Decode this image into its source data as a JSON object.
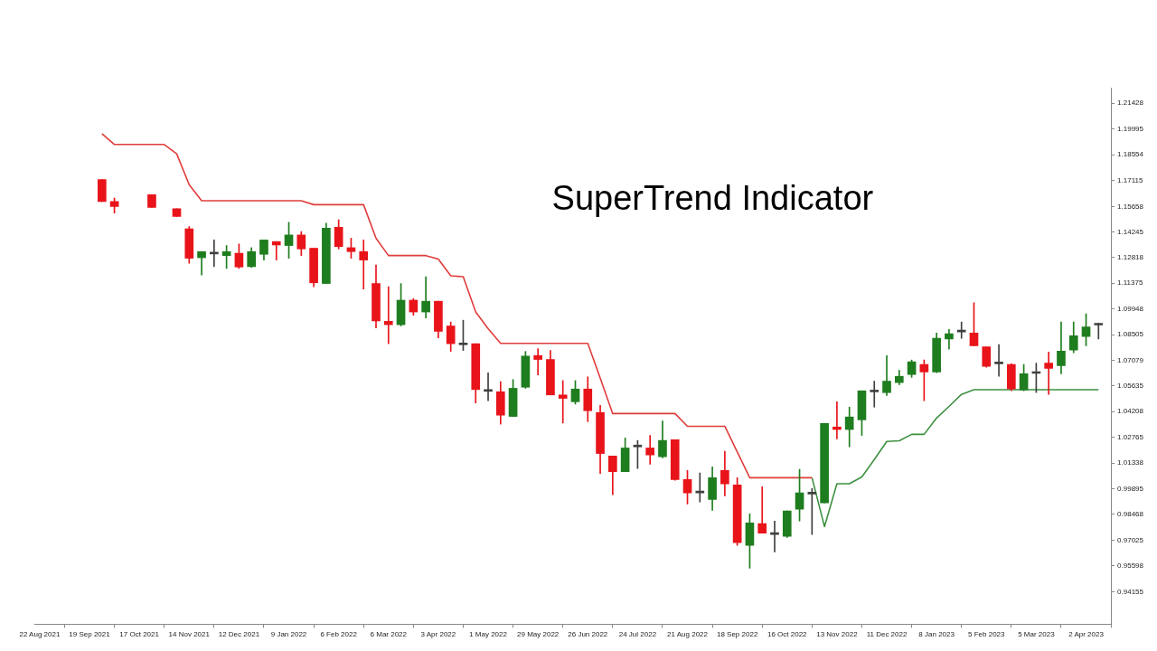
{
  "chart_data": {
    "type": "candlestick",
    "title": "SuperTrend Indicator",
    "x": [
      "2021-09-26",
      "2021-10-03",
      "2021-10-24",
      "2021-11-07",
      "2021-11-14",
      "2021-11-21",
      "2021-11-28",
      "2021-12-05",
      "2021-12-12",
      "2021-12-19",
      "2021-12-26",
      "2022-01-02",
      "2022-01-09",
      "2022-01-16",
      "2022-01-23",
      "2022-01-30",
      "2022-02-06",
      "2022-02-13",
      "2022-02-20",
      "2022-02-27",
      "2022-03-06",
      "2022-03-13",
      "2022-03-20",
      "2022-03-27",
      "2022-04-03",
      "2022-04-10",
      "2022-04-17",
      "2022-04-24",
      "2022-05-01",
      "2022-05-08",
      "2022-05-15",
      "2022-05-22",
      "2022-05-29",
      "2022-06-05",
      "2022-06-12",
      "2022-06-19",
      "2022-06-26",
      "2022-07-03",
      "2022-07-10",
      "2022-07-17",
      "2022-07-24",
      "2022-07-31",
      "2022-08-07",
      "2022-08-14",
      "2022-08-21",
      "2022-08-28",
      "2022-09-04",
      "2022-09-11",
      "2022-09-18",
      "2022-09-25",
      "2022-10-02",
      "2022-10-09",
      "2022-10-16",
      "2022-10-23",
      "2022-10-30",
      "2022-11-06",
      "2022-11-13",
      "2022-11-20",
      "2022-11-27",
      "2022-12-04",
      "2022-12-11",
      "2022-12-18",
      "2022-12-25",
      "2023-01-01",
      "2023-01-08",
      "2023-01-15",
      "2023-01-22",
      "2023-01-29",
      "2023-02-05",
      "2023-02-12",
      "2023-02-19",
      "2023-02-26",
      "2023-03-05",
      "2023-03-12",
      "2023-03-19",
      "2023-03-26",
      "2023-04-02",
      "2023-04-09"
    ],
    "ohlc": [
      [
        1.1716,
        1.1716,
        1.1594,
        1.1594
      ],
      [
        1.1594,
        1.1613,
        1.1529,
        1.1566
      ],
      [
        1.1632,
        1.1632,
        1.1561,
        1.1561
      ],
      [
        1.1553,
        1.1553,
        1.151,
        1.151
      ],
      [
        1.1441,
        1.1454,
        1.1249,
        1.1277
      ],
      [
        1.128,
        1.1314,
        1.1183,
        1.1314
      ],
      [
        1.1301,
        1.1379,
        1.123,
        1.1303
      ],
      [
        1.1292,
        1.1348,
        1.122,
        1.1314
      ],
      [
        1.1305,
        1.1357,
        1.122,
        1.1228
      ],
      [
        1.123,
        1.1336,
        1.1226,
        1.1314
      ],
      [
        1.1299,
        1.1379,
        1.1267,
        1.1379
      ],
      [
        1.137,
        1.137,
        1.1267,
        1.1351
      ],
      [
        1.1348,
        1.1478,
        1.1277,
        1.1407
      ],
      [
        1.1407,
        1.1426,
        1.1292,
        1.1329
      ],
      [
        1.1333,
        1.1333,
        1.1118,
        1.114
      ],
      [
        1.1136,
        1.1473,
        1.1136,
        1.1445
      ],
      [
        1.145,
        1.1492,
        1.1329,
        1.1342
      ],
      [
        1.1336,
        1.1389,
        1.1277,
        1.1314
      ],
      [
        1.1314,
        1.1379,
        1.1105,
        1.1267
      ],
      [
        1.1136,
        1.1239,
        1.0888,
        1.0927
      ],
      [
        1.0925,
        1.1118,
        1.08,
        1.0906
      ],
      [
        1.0906,
        1.1136,
        1.0899,
        1.1043
      ],
      [
        1.1043,
        1.1052,
        1.0959,
        1.0977
      ],
      [
        1.0977,
        1.1174,
        1.0944,
        1.1037
      ],
      [
        1.1037,
        1.1037,
        1.0832,
        1.0869
      ],
      [
        1.0899,
        1.0921,
        1.0757,
        1.08
      ],
      [
        1.0794,
        1.0931,
        1.0762,
        1.0796
      ],
      [
        1.08,
        1.08,
        1.0469,
        1.0544
      ],
      [
        1.0534,
        1.0637,
        1.0482,
        1.0536
      ],
      [
        1.0532,
        1.0588,
        1.0351,
        1.0401
      ],
      [
        1.0394,
        1.06,
        1.0394,
        1.0551
      ],
      [
        1.0557,
        1.0757,
        1.0551,
        1.0731
      ],
      [
        1.0734,
        1.0772,
        1.0626,
        1.0712
      ],
      [
        1.0712,
        1.0762,
        1.0514,
        1.0514
      ],
      [
        1.0514,
        1.0594,
        1.0357,
        1.0495
      ],
      [
        1.0476,
        1.0594,
        1.0463,
        1.0547
      ],
      [
        1.0547,
        1.0615,
        1.0365,
        1.0426
      ],
      [
        1.0416,
        1.0456,
        1.0076,
        1.0187
      ],
      [
        1.0173,
        1.0173,
        0.9957,
        1.0086
      ],
      [
        1.0086,
        1.0274,
        1.0086,
        1.0218
      ],
      [
        1.0224,
        1.026,
        1.0103,
        1.0226
      ],
      [
        1.0218,
        1.0288,
        1.0127,
        1.0179
      ],
      [
        1.0169,
        1.0369,
        1.0163,
        1.026
      ],
      [
        1.0264,
        1.0264,
        1.0038,
        1.0042
      ],
      [
        1.0042,
        1.0093,
        0.9905,
        0.9967
      ],
      [
        0.9967,
        1.0078,
        0.9917,
        0.9969
      ],
      [
        0.9931,
        1.0113,
        0.987,
        1.0052
      ],
      [
        1.0093,
        1.02,
        0.9951,
        1.0018
      ],
      [
        1.0012,
        1.0052,
        0.9674,
        0.9689
      ],
      [
        0.9674,
        0.985,
        0.9547,
        0.98
      ],
      [
        0.9796,
        1.0002,
        0.9743,
        0.9743
      ],
      [
        0.9735,
        0.981,
        0.9638,
        0.9737
      ],
      [
        0.9725,
        0.9866,
        0.9719,
        0.9866
      ],
      [
        0.9876,
        1.0099,
        0.981,
        0.9967
      ],
      [
        0.9961,
        0.9992,
        0.9735,
        0.9963
      ],
      [
        0.9911,
        1.0355,
        0.9911,
        1.0355
      ],
      [
        1.0335,
        1.0476,
        1.0268,
        1.0321
      ],
      [
        1.0321,
        1.0446,
        1.0224,
        1.0391
      ],
      [
        1.0375,
        1.0537,
        1.0288,
        1.0537
      ],
      [
        1.0531,
        1.0591,
        1.0446,
        1.0533
      ],
      [
        1.0527,
        1.0733,
        1.0511,
        1.0591
      ],
      [
        1.0583,
        1.0652,
        1.0571,
        1.0618
      ],
      [
        1.0628,
        1.0709,
        1.0612,
        1.0699
      ],
      [
        1.0684,
        1.0709,
        1.0482,
        1.0642
      ],
      [
        1.0642,
        1.086,
        1.0638,
        1.083
      ],
      [
        1.0826,
        1.088,
        1.0769,
        1.0856
      ],
      [
        1.0866,
        1.0921,
        1.083,
        1.0868
      ],
      [
        1.086,
        1.1028,
        1.0789,
        1.0789
      ],
      [
        1.0783,
        1.0783,
        1.0668,
        1.0674
      ],
      [
        1.0688,
        1.0795,
        1.0618,
        1.069
      ],
      [
        1.0684,
        1.0688,
        1.0537,
        1.0547
      ],
      [
        1.0543,
        1.0684,
        1.0537,
        1.0632
      ],
      [
        1.0634,
        1.0692,
        1.0527,
        1.0636
      ],
      [
        1.0692,
        1.0753,
        1.0517,
        1.0662
      ],
      [
        1.0678,
        1.0921,
        1.0632,
        1.0759
      ],
      [
        1.0765,
        1.0921,
        1.0749,
        1.0844
      ],
      [
        1.084,
        1.0967,
        1.0789,
        1.0894
      ],
      [
        1.0904,
        1.0915,
        1.0826,
        1.0906
      ]
    ],
    "colors": [
      "#e8141a",
      "#e8141a",
      "#e8141a",
      "#e8141a",
      "#e8141a",
      "#1e7d1e",
      "#404040",
      "#1e7d1e",
      "#e8141a",
      "#1e7d1e",
      "#1e7d1e",
      "#e8141a",
      "#1e7d1e",
      "#e8141a",
      "#e8141a",
      "#1e7d1e",
      "#e8141a",
      "#e8141a",
      "#e8141a",
      "#e8141a",
      "#e8141a",
      "#1e7d1e",
      "#e8141a",
      "#1e7d1e",
      "#e8141a",
      "#e8141a",
      "#404040",
      "#e8141a",
      "#404040",
      "#e8141a",
      "#1e7d1e",
      "#1e7d1e",
      "#e8141a",
      "#e8141a",
      "#e8141a",
      "#1e7d1e",
      "#e8141a",
      "#e8141a",
      "#e8141a",
      "#1e7d1e",
      "#404040",
      "#e8141a",
      "#1e7d1e",
      "#e8141a",
      "#e8141a",
      "#404040",
      "#1e7d1e",
      "#e8141a",
      "#e8141a",
      "#1e7d1e",
      "#e8141a",
      "#404040",
      "#1e7d1e",
      "#1e7d1e",
      "#404040",
      "#1e7d1e",
      "#e8141a",
      "#1e7d1e",
      "#1e7d1e",
      "#404040",
      "#1e7d1e",
      "#1e7d1e",
      "#1e7d1e",
      "#e8141a",
      "#1e7d1e",
      "#1e7d1e",
      "#404040",
      "#e8141a",
      "#e8141a",
      "#404040",
      "#e8141a",
      "#1e7d1e",
      "#404040",
      "#e8141a",
      "#1e7d1e",
      "#1e7d1e",
      "#1e7d1e",
      "#404040"
    ],
    "series": [
      {
        "type": "line",
        "color": "#e03c3c",
        "x": [
          "2021-09-26",
          "2021-10-03",
          "2021-10-31",
          "2021-11-07",
          "2021-11-14",
          "2021-11-21",
          "2022-01-16",
          "2022-01-23",
          "2022-02-20",
          "2022-02-27",
          "2022-03-06",
          "2022-03-27",
          "2022-04-03",
          "2022-04-10",
          "2022-04-17",
          "2022-04-24",
          "2022-05-01",
          "2022-05-08",
          "2022-06-26",
          "2022-07-03",
          "2022-07-10",
          "2022-08-14",
          "2022-08-21",
          "2022-09-11",
          "2022-09-18",
          "2022-09-25",
          "2022-10-30"
        ],
        "values": [
          1.1972,
          1.1912,
          1.1912,
          1.186,
          1.1688,
          1.1598,
          1.1598,
          1.1576,
          1.1576,
          1.1389,
          1.1292,
          1.1292,
          1.1273,
          1.1179,
          1.1174,
          1.0977,
          1.0884,
          1.0802,
          1.0802,
          1.0608,
          1.041,
          1.041,
          1.0339,
          1.0339,
          1.0196,
          1.0052,
          1.0052
        ]
      },
      {
        "type": "line",
        "color": "#3d9140",
        "x": [
          "2022-10-30",
          "2022-11-06",
          "2022-11-13",
          "2022-11-20",
          "2022-11-27",
          "2022-12-04",
          "2022-12-11",
          "2022-12-18",
          "2022-12-25",
          "2023-01-01",
          "2023-01-08",
          "2023-01-15",
          "2023-01-22",
          "2023-01-29",
          "2023-04-09"
        ],
        "values": [
          1.0052,
          0.9779,
          1.0018,
          1.0018,
          1.0056,
          1.0153,
          1.0254,
          1.0258,
          1.0294,
          1.0294,
          1.0385,
          1.045,
          1.0517,
          1.0543,
          1.0543
        ]
      }
    ],
    "xlim": [
      "2021-08-19",
      "2023-04-16"
    ],
    "xticks": [
      {
        "value": "2021-08-22",
        "label": "22 Aug 2021"
      },
      {
        "value": "2021-09-19",
        "label": "19 Sep 2021"
      },
      {
        "value": "2021-10-17",
        "label": "17 Oct 2021"
      },
      {
        "value": "2021-11-14",
        "label": "14 Nov 2021"
      },
      {
        "value": "2021-12-12",
        "label": "12 Dec 2021"
      },
      {
        "value": "2022-01-09",
        "label": "9 Jan 2022"
      },
      {
        "value": "2022-02-06",
        "label": "6 Feb 2022"
      },
      {
        "value": "2022-03-06",
        "label": "6 Mar 2022"
      },
      {
        "value": "2022-04-03",
        "label": "3 Apr 2022"
      },
      {
        "value": "2022-05-01",
        "label": "1 May 2022"
      },
      {
        "value": "2022-05-29",
        "label": "29 May 2022"
      },
      {
        "value": "2022-06-26",
        "label": "26 Jun 2022"
      },
      {
        "value": "2022-07-24",
        "label": "24 Jul 2022"
      },
      {
        "value": "2022-08-21",
        "label": "21 Aug 2022"
      },
      {
        "value": "2022-09-18",
        "label": "18 Sep 2022"
      },
      {
        "value": "2022-10-16",
        "label": "16 Oct 2022"
      },
      {
        "value": "2022-11-13",
        "label": "13 Nov 2022"
      },
      {
        "value": "2022-12-11",
        "label": "11 Dec 2022"
      },
      {
        "value": "2023-01-08",
        "label": "8 Jan 2023"
      },
      {
        "value": "2023-02-05",
        "label": "5 Feb 2023"
      },
      {
        "value": "2023-03-05",
        "label": "5 Mar 2023"
      },
      {
        "value": "2023-04-02",
        "label": "2 Apr 2023"
      }
    ],
    "ylim": [
      0.9234,
      1.2229
    ],
    "yticks": [
      1.21428,
      1.19995,
      1.18554,
      1.17115,
      1.15658,
      1.14245,
      1.12818,
      1.11375,
      1.09948,
      1.08505,
      1.07079,
      1.05635,
      1.04208,
      1.02765,
      1.01338,
      0.99895,
      0.98468,
      0.97025,
      0.95598,
      0.94155
    ],
    "marker": "none"
  }
}
